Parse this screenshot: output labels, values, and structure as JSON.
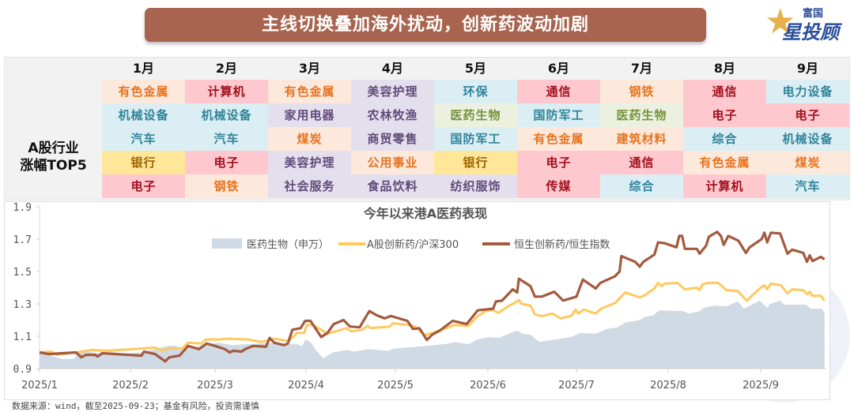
{
  "header": {
    "title": "主线切换叠加海外扰动，创新药波动加剧"
  },
  "logo": {
    "line1": "富国",
    "line2": "星投顾"
  },
  "palette": {
    "orange": {
      "bg": "#fde9dc",
      "fg": "#e8731f"
    },
    "red": {
      "bg": "#ffc7ce",
      "fg": "#a0111c"
    },
    "blue": {
      "bg": "#daeef3",
      "fg": "#31849b"
    },
    "gold": {
      "bg": "#ffe699",
      "fg": "#9c6500"
    },
    "purple": {
      "bg": "#e4dfec",
      "fg": "#604a7b"
    },
    "green": {
      "bg": "#ebf1de",
      "fg": "#76933c"
    }
  },
  "table": {
    "row_label_1": "A股行业",
    "row_label_2": "涨幅TOP5",
    "months": [
      {
        "label": "1月",
        "items": [
          {
            "t": "有色金属",
            "c": "orange"
          },
          {
            "t": "机械设备",
            "c": "blue"
          },
          {
            "t": "汽车",
            "c": "blue"
          },
          {
            "t": "银行",
            "c": "gold"
          },
          {
            "t": "电子",
            "c": "red"
          }
        ]
      },
      {
        "label": "2月",
        "items": [
          {
            "t": "计算机",
            "c": "red"
          },
          {
            "t": "机械设备",
            "c": "blue"
          },
          {
            "t": "汽车",
            "c": "blue"
          },
          {
            "t": "电子",
            "c": "red"
          },
          {
            "t": "钢铁",
            "c": "orange"
          }
        ]
      },
      {
        "label": "3月",
        "items": [
          {
            "t": "有色金属",
            "c": "orange"
          },
          {
            "t": "家用电器",
            "c": "purple"
          },
          {
            "t": "煤炭",
            "c": "orange"
          },
          {
            "t": "美容护理",
            "c": "purple"
          },
          {
            "t": "社会服务",
            "c": "purple"
          }
        ]
      },
      {
        "label": "4月",
        "items": [
          {
            "t": "美容护理",
            "c": "purple"
          },
          {
            "t": "农林牧渔",
            "c": "purple"
          },
          {
            "t": "商贸零售",
            "c": "purple"
          },
          {
            "t": "公用事业",
            "c": "orange"
          },
          {
            "t": "食品饮料",
            "c": "purple"
          }
        ]
      },
      {
        "label": "5月",
        "items": [
          {
            "t": "环保",
            "c": "blue"
          },
          {
            "t": "医药生物",
            "c": "green"
          },
          {
            "t": "国防军工",
            "c": "blue"
          },
          {
            "t": "银行",
            "c": "gold"
          },
          {
            "t": "纺织服饰",
            "c": "purple"
          }
        ]
      },
      {
        "label": "6月",
        "items": [
          {
            "t": "通信",
            "c": "red"
          },
          {
            "t": "国防军工",
            "c": "blue"
          },
          {
            "t": "有色金属",
            "c": "orange"
          },
          {
            "t": "电子",
            "c": "red"
          },
          {
            "t": "传媒",
            "c": "red"
          }
        ]
      },
      {
        "label": "7月",
        "items": [
          {
            "t": "钢铁",
            "c": "orange"
          },
          {
            "t": "医药生物",
            "c": "green"
          },
          {
            "t": "建筑材料",
            "c": "orange"
          },
          {
            "t": "通信",
            "c": "red"
          },
          {
            "t": "综合",
            "c": "blue"
          }
        ]
      },
      {
        "label": "8月",
        "items": [
          {
            "t": "通信",
            "c": "red"
          },
          {
            "t": "电子",
            "c": "red"
          },
          {
            "t": "综合",
            "c": "blue"
          },
          {
            "t": "有色金属",
            "c": "orange"
          },
          {
            "t": "计算机",
            "c": "red"
          }
        ]
      },
      {
        "label": "9月",
        "items": [
          {
            "t": "电力设备",
            "c": "blue"
          },
          {
            "t": "电子",
            "c": "red"
          },
          {
            "t": "机械设备",
            "c": "blue"
          },
          {
            "t": "煤炭",
            "c": "orange"
          },
          {
            "t": "汽车",
            "c": "blue"
          }
        ]
      }
    ]
  },
  "chart_data": {
    "type": "line",
    "title": "今年以来港A医药表现",
    "xlabel": "",
    "ylabel": "",
    "x_unit": "month position (1 = 2025/1 start)",
    "xticks": [
      1,
      2,
      3,
      4,
      5,
      6,
      7,
      8,
      9
    ],
    "xtick_labels": [
      "2025/1",
      "2025/2",
      "2025/3",
      "2025/4",
      "2025/5",
      "2025/6",
      "2025/7",
      "2025/8",
      "2025/9"
    ],
    "xlim": [
      1,
      9.69
    ],
    "ylim": [
      0.9,
      1.9
    ],
    "yticks": [
      0.9,
      1.1,
      1.3,
      1.5,
      1.7,
      1.9
    ],
    "ytick_labels": [
      "0.9",
      "1.1",
      "1.3",
      "1.5",
      "1.7",
      "1.9"
    ],
    "legend_position": "top-center",
    "grid": false,
    "series": [
      {
        "name": "医药生物（申万）",
        "kind": "area",
        "color": "#d0dae4",
        "x": [
          1.0,
          1.25,
          1.37,
          1.46,
          1.76,
          2.12,
          2.32,
          2.44,
          2.55,
          2.62,
          2.71,
          2.91,
          3.04,
          3.19,
          3.33,
          3.63,
          3.78,
          3.9,
          3.96,
          3.99,
          4.05,
          4.11,
          4.19,
          4.3,
          4.45,
          4.54,
          4.69,
          4.91,
          5.0,
          5.34,
          5.58,
          5.64,
          5.79,
          5.88,
          6.02,
          6.12,
          6.33,
          6.39,
          6.48,
          6.58,
          6.76,
          6.94,
          7.04,
          7.21,
          7.33,
          7.45,
          7.53,
          7.69,
          7.75,
          7.84,
          7.9,
          8.16,
          8.22,
          8.34,
          8.38,
          8.51,
          8.63,
          8.75,
          8.82,
          8.99,
          9.07,
          9.1,
          9.21,
          9.25,
          9.49,
          9.54,
          9.66,
          9.69
        ],
        "y": [
          1.0,
          0.96,
          0.96,
          1.01,
          0.985,
          1.0,
          1.025,
          1.04,
          1.04,
          1.01,
          1.03,
          1.05,
          1.06,
          1.045,
          1.05,
          1.06,
          1.05,
          1.05,
          1.04,
          1.08,
          1.065,
          1.015,
          0.965,
          1.0,
          1.015,
          1.005,
          1.02,
          1.01,
          1.025,
          1.04,
          1.055,
          1.065,
          1.05,
          1.08,
          1.095,
          1.09,
          1.135,
          1.115,
          1.11,
          1.065,
          1.08,
          1.095,
          1.12,
          1.115,
          1.145,
          1.155,
          1.185,
          1.2,
          1.22,
          1.23,
          1.26,
          1.255,
          1.24,
          1.255,
          1.275,
          1.29,
          1.285,
          1.315,
          1.27,
          1.32,
          1.275,
          1.3,
          1.32,
          1.295,
          1.295,
          1.27,
          1.27,
          1.245
        ]
      },
      {
        "name": "A股创新药/沪深300",
        "kind": "line",
        "color": "#ffc95e",
        "x": [
          1.0,
          1.13,
          1.19,
          1.46,
          1.58,
          1.76,
          2.16,
          2.29,
          2.39,
          2.45,
          2.61,
          2.68,
          2.84,
          2.89,
          3.04,
          3.14,
          3.36,
          3.51,
          3.66,
          3.81,
          3.9,
          3.98,
          4.01,
          4.08,
          4.24,
          4.39,
          4.45,
          4.51,
          4.63,
          4.69,
          4.72,
          4.94,
          4.97,
          5.15,
          5.21,
          5.31,
          5.34,
          5.48,
          5.64,
          5.79,
          5.88,
          5.99,
          6.06,
          6.12,
          6.24,
          6.3,
          6.35,
          6.38,
          6.48,
          6.53,
          6.61,
          6.73,
          6.82,
          6.94,
          6.99,
          7.02,
          7.08,
          7.21,
          7.27,
          7.42,
          7.53,
          7.69,
          7.75,
          7.85,
          7.89,
          7.93,
          7.96,
          8.1,
          8.18,
          8.31,
          8.34,
          8.37,
          8.43,
          8.54,
          8.63,
          8.75,
          8.85,
          8.99,
          9.04,
          9.07,
          9.11,
          9.22,
          9.29,
          9.34,
          9.46,
          9.5,
          9.53,
          9.56,
          9.65,
          9.69
        ],
        "y": [
          1.0,
          1.005,
          0.985,
          1.005,
          1.015,
          1.01,
          1.025,
          1.03,
          1.01,
          1.025,
          1.025,
          1.06,
          1.055,
          1.08,
          1.08,
          1.085,
          1.08,
          1.065,
          1.085,
          1.07,
          1.12,
          1.12,
          1.17,
          1.17,
          1.115,
          1.14,
          1.15,
          1.13,
          1.14,
          1.165,
          1.15,
          1.16,
          1.18,
          1.17,
          1.16,
          1.11,
          1.11,
          1.135,
          1.17,
          1.165,
          1.22,
          1.26,
          1.26,
          1.245,
          1.29,
          1.305,
          1.325,
          1.3,
          1.29,
          1.235,
          1.225,
          1.24,
          1.21,
          1.225,
          1.265,
          1.24,
          1.265,
          1.24,
          1.27,
          1.305,
          1.37,
          1.34,
          1.355,
          1.395,
          1.43,
          1.41,
          1.425,
          1.43,
          1.39,
          1.4,
          1.385,
          1.42,
          1.43,
          1.43,
          1.385,
          1.38,
          1.32,
          1.395,
          1.415,
          1.39,
          1.425,
          1.415,
          1.365,
          1.39,
          1.385,
          1.36,
          1.375,
          1.35,
          1.35,
          1.32
        ]
      },
      {
        "name": "恒生创新药/恒生指数",
        "kind": "line",
        "color": "#a35a3f",
        "x": [
          1.0,
          1.1,
          1.4,
          1.46,
          1.51,
          1.61,
          1.64,
          1.69,
          2.13,
          2.16,
          2.29,
          2.37,
          2.41,
          2.46,
          2.58,
          2.68,
          2.81,
          2.9,
          3.0,
          3.11,
          3.16,
          3.2,
          3.29,
          3.33,
          3.42,
          3.56,
          3.6,
          3.65,
          3.76,
          3.8,
          3.85,
          3.94,
          3.99,
          4.05,
          4.17,
          4.24,
          4.31,
          4.42,
          4.49,
          4.6,
          4.67,
          4.71,
          4.79,
          4.88,
          4.95,
          5.13,
          5.19,
          5.26,
          5.34,
          5.4,
          5.48,
          5.62,
          5.77,
          5.89,
          6.06,
          6.09,
          6.16,
          6.28,
          6.33,
          6.35,
          6.48,
          6.53,
          6.61,
          6.75,
          6.85,
          7.0,
          7.07,
          7.21,
          7.26,
          7.42,
          7.47,
          7.49,
          7.64,
          7.69,
          7.73,
          7.85,
          7.89,
          7.96,
          8.09,
          8.12,
          8.15,
          8.18,
          8.31,
          8.34,
          8.41,
          8.44,
          8.53,
          8.57,
          8.6,
          8.65,
          8.76,
          8.84,
          8.88,
          9.01,
          9.04,
          9.07,
          9.11,
          9.21,
          9.29,
          9.34,
          9.46,
          9.5,
          9.53,
          9.56,
          9.65,
          9.69
        ],
        "y": [
          1.0,
          0.99,
          1.0,
          0.97,
          0.985,
          0.985,
          0.975,
          0.995,
          0.98,
          1.005,
          0.99,
          0.96,
          0.945,
          0.97,
          0.98,
          1.04,
          1.02,
          1.055,
          1.04,
          1.02,
          1.0,
          1.01,
          1.005,
          1.02,
          1.04,
          1.035,
          1.09,
          1.06,
          1.045,
          1.055,
          1.14,
          1.15,
          1.195,
          1.195,
          1.095,
          1.12,
          1.175,
          1.2,
          1.16,
          1.155,
          1.22,
          1.255,
          1.23,
          1.21,
          1.225,
          1.195,
          1.145,
          1.15,
          1.077,
          1.11,
          1.135,
          1.195,
          1.175,
          1.26,
          1.27,
          1.315,
          1.32,
          1.39,
          1.37,
          1.455,
          1.41,
          1.345,
          1.345,
          1.375,
          1.32,
          1.345,
          1.45,
          1.395,
          1.43,
          1.47,
          1.5,
          1.595,
          1.56,
          1.53,
          1.56,
          1.605,
          1.68,
          1.675,
          1.65,
          1.72,
          1.72,
          1.64,
          1.64,
          1.61,
          1.66,
          1.715,
          1.745,
          1.72,
          1.665,
          1.72,
          1.69,
          1.615,
          1.65,
          1.7,
          1.74,
          1.68,
          1.74,
          1.735,
          1.61,
          1.635,
          1.615,
          1.56,
          1.6,
          1.565,
          1.59,
          1.575
        ]
      }
    ]
  },
  "footer": {
    "source": "数据来源：wind，截至2025-09-23；基金有风险，投资需谨慎"
  }
}
